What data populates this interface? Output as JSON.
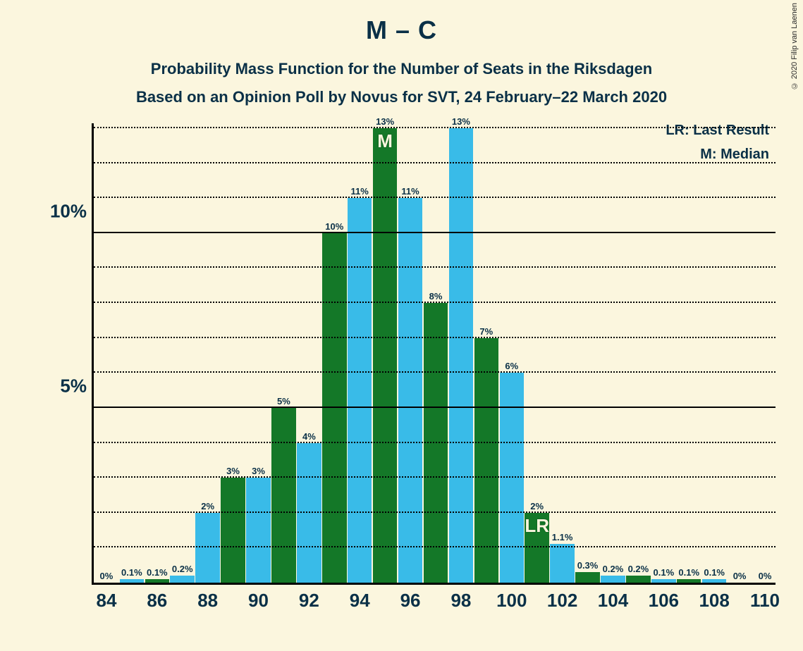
{
  "copyright": "© 2020 Filip van Laenen",
  "title": "M – C",
  "subtitle_line1": "Probability Mass Function for the Number of Seats in the Riksdagen",
  "subtitle_line2": "Based on an Opinion Poll by Novus for SVT, 24 February–22 March 2020",
  "legend_lr": "LR: Last Result",
  "legend_m": "M: Median",
  "chart": {
    "type": "bar",
    "background_color": "#fbf6de",
    "axis_color": "#000000",
    "text_color": "#0a3047",
    "bar_colors": {
      "series_a": "#147828",
      "series_b": "#39bbe8"
    },
    "ymax": 13.2,
    "ytick_major": [
      5,
      10
    ],
    "ytick_minor_step": 1,
    "ytick_labels": {
      "5": "5%",
      "10": "10%"
    },
    "xticks": [
      84,
      86,
      88,
      90,
      92,
      94,
      96,
      98,
      100,
      102,
      104,
      106,
      108,
      110
    ],
    "xmin": 84,
    "xmax": 111,
    "bar_width": 0.96,
    "label_fontsize": 13,
    "axis_fontsize": 26,
    "median_marker": {
      "text": "M",
      "at_x": 95,
      "series": "a"
    },
    "lr_marker": {
      "text": "LR",
      "at_x": 101,
      "series": "a"
    },
    "data": [
      {
        "x": 84,
        "a": 0,
        "a_label": "0%"
      },
      {
        "x": 85,
        "b": 0.1,
        "b_label": "0.1%"
      },
      {
        "x": 86,
        "a": 0.1,
        "a_label": "0.1%"
      },
      {
        "x": 87,
        "b": 0.2,
        "b_label": "0.2%"
      },
      {
        "x": 88,
        "b": 2,
        "b_label": "2%"
      },
      {
        "x": 89,
        "a": 3,
        "a_label": "3%"
      },
      {
        "x": 90,
        "b": 3,
        "b_label": "3%"
      },
      {
        "x": 91,
        "a": 5,
        "a_label": "5%"
      },
      {
        "x": 92,
        "b": 4,
        "b_label": "4%"
      },
      {
        "x": 93,
        "a": 10,
        "a_label": "10%"
      },
      {
        "x": 94,
        "b": 11,
        "b_label": "11%"
      },
      {
        "x": 95,
        "a": 13,
        "a_label": "13%"
      },
      {
        "x": 96,
        "b": 11,
        "b_label": "11%"
      },
      {
        "x": 97,
        "a": 8,
        "a_label": "8%"
      },
      {
        "x": 98,
        "b": 13,
        "b_label": "13%"
      },
      {
        "x": 99,
        "a": 7,
        "a_label": "7%"
      },
      {
        "x": 100,
        "b": 6,
        "b_label": "6%"
      },
      {
        "x": 101,
        "a": 2,
        "a_label": "2%"
      },
      {
        "x": 102,
        "b": 1.1,
        "b_label": "1.1%"
      },
      {
        "x": 103,
        "a": 0.3,
        "a_label": "0.3%"
      },
      {
        "x": 104,
        "b": 0.2,
        "b_label": "0.2%"
      },
      {
        "x": 105,
        "a": 0.2,
        "a_label": "0.2%"
      },
      {
        "x": 106,
        "b": 0.1,
        "b_label": "0.1%"
      },
      {
        "x": 107,
        "a": 0.1,
        "a_label": "0.1%"
      },
      {
        "x": 108,
        "b": 0.1,
        "b_label": "0.1%"
      },
      {
        "x": 109,
        "a": 0,
        "a_label": "0%"
      },
      {
        "x": 110,
        "b": 0,
        "b_label": "0%"
      }
    ]
  }
}
